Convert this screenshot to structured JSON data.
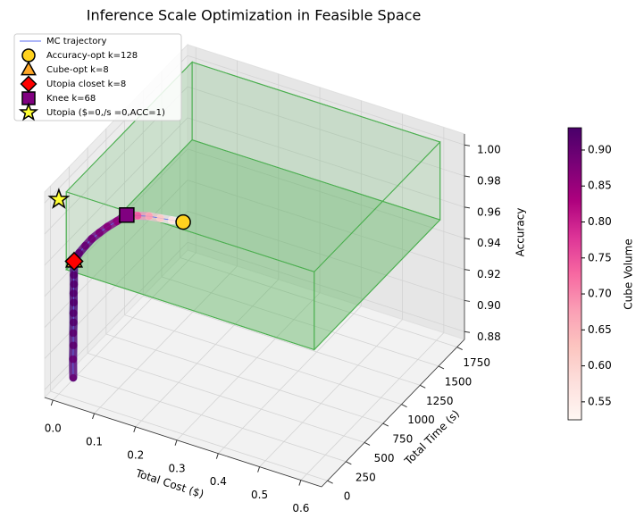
{
  "chart_data": {
    "type": "scatter3d",
    "title": "Inference Scale Optimization in Feasible Space",
    "xlabel": "Total Cost ($)",
    "ylabel": "Total Time (s)",
    "zlabel": "Accuracy",
    "xlim": [
      -0.02,
      0.65
    ],
    "ylim": [
      -80,
      1850
    ],
    "zlim": [
      0.875,
      1.007
    ],
    "xticks": [
      {
        "value": 0,
        "label": "0.0"
      },
      0.1,
      0.2,
      0.3,
      0.4,
      0.5,
      0.6
    ],
    "yticks": [
      0,
      250,
      500,
      750,
      1000,
      1250,
      1500,
      1750
    ],
    "zticks": [
      0.88,
      {
        "value": 0.9,
        "label": "0.90"
      },
      0.92,
      0.94,
      0.96,
      0.98,
      {
        "value": 1,
        "label": "1.00"
      }
    ],
    "grid": true,
    "legend": "upper left",
    "feasible_region": {
      "x": [
        0,
        0.6
      ],
      "y": [
        100,
        1800
      ],
      "z": [
        0.95,
        1.0
      ],
      "color": "#4caf50"
    },
    "trajectory": {
      "name": "MC trajectory",
      "color": "#5b6cf0",
      "x": [
        0.0,
        0.0,
        0.001,
        0.001,
        0.002,
        0.002,
        0.003,
        0.003,
        0.004,
        0.004,
        0.005,
        0.008,
        0.012,
        0.017,
        0.023,
        0.03,
        0.04,
        0.05,
        0.08,
        0.11,
        0.14,
        0.17,
        0.2
      ],
      "y": [
        194,
        192,
        190,
        189,
        187,
        186,
        184,
        182,
        181,
        180,
        178,
        230,
        290,
        350,
        420,
        490,
        560,
        638,
        620,
        605,
        590,
        576,
        563
      ],
      "z": [
        0.876,
        0.888,
        0.897,
        0.905,
        0.912,
        0.918,
        0.925,
        0.931,
        0.937,
        0.943,
        0.952,
        0.955,
        0.957,
        0.959,
        0.96,
        0.961,
        0.962,
        0.963,
        0.966,
        0.969,
        0.971,
        0.973,
        0.975
      ],
      "volume": [
        0.9,
        0.9,
        0.91,
        0.91,
        0.92,
        0.92,
        0.92,
        0.92,
        0.92,
        0.92,
        0.92,
        0.91,
        0.9,
        0.89,
        0.88,
        0.87,
        0.86,
        0.85,
        0.75,
        0.68,
        0.62,
        0.57,
        0.53
      ]
    },
    "markers": [
      {
        "name": "Accuracy-opt k=128",
        "marker": "circle",
        "color": "#ffd21f",
        "x": 0.2,
        "y": 563,
        "z": 0.975
      },
      {
        "name": "Cube-opt k=8",
        "marker": "triangle",
        "color": "#ffa726",
        "x": 0.005,
        "y": 178,
        "z": 0.952
      },
      {
        "name": "Utopia closet k=8",
        "marker": "diamond",
        "color": "#ff0000",
        "x": 0.005,
        "y": 178,
        "z": 0.952
      },
      {
        "name": "Knee k=68",
        "marker": "square",
        "color": "#800080",
        "x": 0.05,
        "y": 638,
        "z": 0.963
      },
      {
        "name": "Utopia ($=0,/s =0,ACC=1)",
        "marker": "star",
        "color": "#ffff33",
        "x": 0,
        "y": 0,
        "z": 1
      }
    ],
    "colorbar": {
      "label": "Cube Volume",
      "colormap": "RdPu",
      "lim": [
        0.525,
        0.931
      ],
      "ticks": [
        0.55,
        {
          "value": 0.6,
          "label": "0.60"
        },
        0.65,
        {
          "value": 0.7,
          "label": "0.70"
        },
        0.75,
        {
          "value": 0.8,
          "label": "0.80"
        },
        0.85,
        {
          "value": 0.9,
          "label": "0.90"
        }
      ]
    }
  }
}
